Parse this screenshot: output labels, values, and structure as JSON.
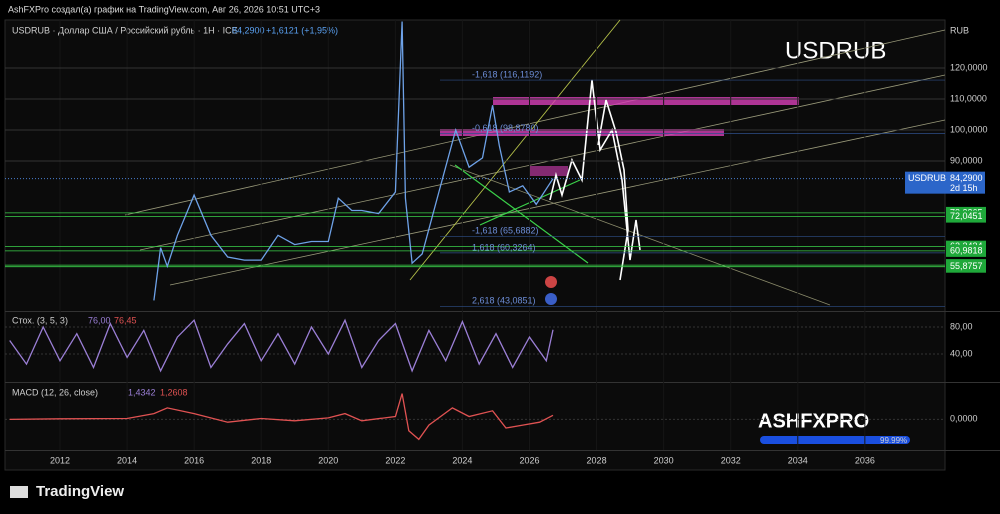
{
  "header": {
    "text": "AshFXPro создал(а) график на TradingView.com, Авг 26, 2026 10:51 UTC+3"
  },
  "legend": {
    "symbol": "USDRUB · Доллар США / Российский рубль · 1H · ICE",
    "last": "84,2900",
    "change": "+1,6121 (+1,95%)"
  },
  "watermark": {
    "title": "USDRUB",
    "brand": "ASHFXPRO",
    "percent": "99.99%"
  },
  "currency": "RUB",
  "footer": {
    "logo": "TradingView"
  },
  "chart_data": [
    {
      "type": "line",
      "pane": "main",
      "x": [
        2014.8,
        2015.0,
        2015.2,
        2015.5,
        2016.0,
        2016.5,
        2017,
        2017.5,
        2018,
        2018.5,
        2019,
        2019.5,
        2020,
        2020.3,
        2020.7,
        2021,
        2021.5,
        2022.0,
        2022.2,
        2022.3,
        2022.5,
        2022.8,
        2023.3,
        2023.8,
        2024.2,
        2024.6,
        2024.9,
        2025.1,
        2025.4,
        2025.8,
        2026.2,
        2026.7
      ],
      "series": [
        {
          "name": "USDRUB",
          "color": "#6ea2e8",
          "values": [
            45,
            62,
            56,
            66,
            79,
            66,
            59,
            58,
            58,
            66,
            63,
            64,
            64,
            78,
            74,
            74,
            73,
            80,
            135,
            78,
            57,
            60,
            80,
            100,
            88,
            91,
            108,
            95,
            80,
            82,
            76,
            84.29
          ]
        }
      ],
      "xlim": [
        2010.36,
        2038.39
      ],
      "xticks": [
        2012,
        2014,
        2016,
        2018,
        2020,
        2022,
        2024,
        2026,
        2028,
        2030,
        2032,
        2034,
        2036
      ],
      "ylim": [
        41.9,
        135.5
      ],
      "yticks": [
        {
          "value": 120,
          "label": "120,0000"
        },
        {
          "value": 110,
          "label": "110,0000"
        },
        {
          "value": 100,
          "label": "100,0000"
        },
        {
          "value": 90,
          "label": "90,0000"
        }
      ],
      "last_price": {
        "value": 84.29,
        "label": "84,2900",
        "symbol": "USDRUB",
        "countdown": "2d 15h"
      },
      "levels": [
        {
          "value": 73.2365,
          "label": "73,2365"
        },
        {
          "value": 72.0451,
          "label": "72,0451"
        },
        {
          "value": 62.3434,
          "label": "62,3434"
        },
        {
          "value": 60.9818,
          "label": "60,9818"
        },
        {
          "value": 56.3863,
          "label": "56,3863"
        },
        {
          "value": 55.8757,
          "label": "55,8757"
        }
      ],
      "fib_levels": [
        {
          "value": 116.1192,
          "label": "-1,618 (116,1192)"
        },
        {
          "value": 98.878,
          "label": "-0,618 (98,8780)"
        },
        {
          "value": 65.6882,
          "label": "-1,618 (65,6882)"
        },
        {
          "value": 60.3264,
          "label": "1,618 (60,3264)"
        },
        {
          "value": 43.0851,
          "label": "2,618 (43,0851)"
        }
      ]
    },
    {
      "type": "line",
      "pane": "stoch",
      "title": "Стох. (3, 5, 3)",
      "value_k": "76,00",
      "value_d": "76,45",
      "x": [
        2010.5,
        2011,
        2011.5,
        2012,
        2012.5,
        2013,
        2013.5,
        2014,
        2014.5,
        2015,
        2015.5,
        2016,
        2016.5,
        2017,
        2017.5,
        2018,
        2018.5,
        2019,
        2019.5,
        2020,
        2020.5,
        2021,
        2021.5,
        2022,
        2022.5,
        2023,
        2023.5,
        2024,
        2024.5,
        2025,
        2025.5,
        2026,
        2026.5,
        2026.7
      ],
      "series": [
        {
          "name": "%K",
          "color": "#9b7fd6",
          "values": [
            60,
            25,
            80,
            30,
            70,
            20,
            85,
            35,
            75,
            15,
            65,
            90,
            20,
            55,
            85,
            30,
            70,
            25,
            80,
            40,
            90,
            20,
            60,
            85,
            15,
            75,
            30,
            88,
            25,
            70,
            20,
            65,
            30,
            76
          ]
        }
      ],
      "ylim": [
        1.5,
        100.7
      ],
      "yticks": [
        {
          "value": 80,
          "label": "80,00"
        },
        {
          "value": 40,
          "label": "40,00"
        }
      ]
    },
    {
      "type": "line",
      "pane": "macd",
      "title": "MACD (12, 26, close)",
      "value_macd": "1,4342",
      "value_signal": "1,2608",
      "x": [
        2010.5,
        2012,
        2014,
        2014.8,
        2015.2,
        2016,
        2017,
        2018,
        2019,
        2020,
        2020.5,
        2021,
        2022,
        2022.2,
        2022.4,
        2022.7,
        2023,
        2023.7,
        2024.2,
        2024.9,
        2025.3,
        2025.8,
        2026.3,
        2026.7
      ],
      "series": [
        {
          "name": "MACD",
          "color": "#e05252",
          "values": [
            0,
            0.2,
            0.3,
            2,
            4,
            2,
            -1,
            0.3,
            -0.5,
            0.5,
            2,
            -0.5,
            1,
            9,
            -4,
            -7,
            -2,
            4,
            1,
            3,
            -3,
            -2,
            -1,
            1.43
          ]
        }
      ],
      "ylim": [
        -10,
        12
      ],
      "yticks": [
        {
          "value": 0,
          "label": "0,0000"
        }
      ]
    }
  ]
}
